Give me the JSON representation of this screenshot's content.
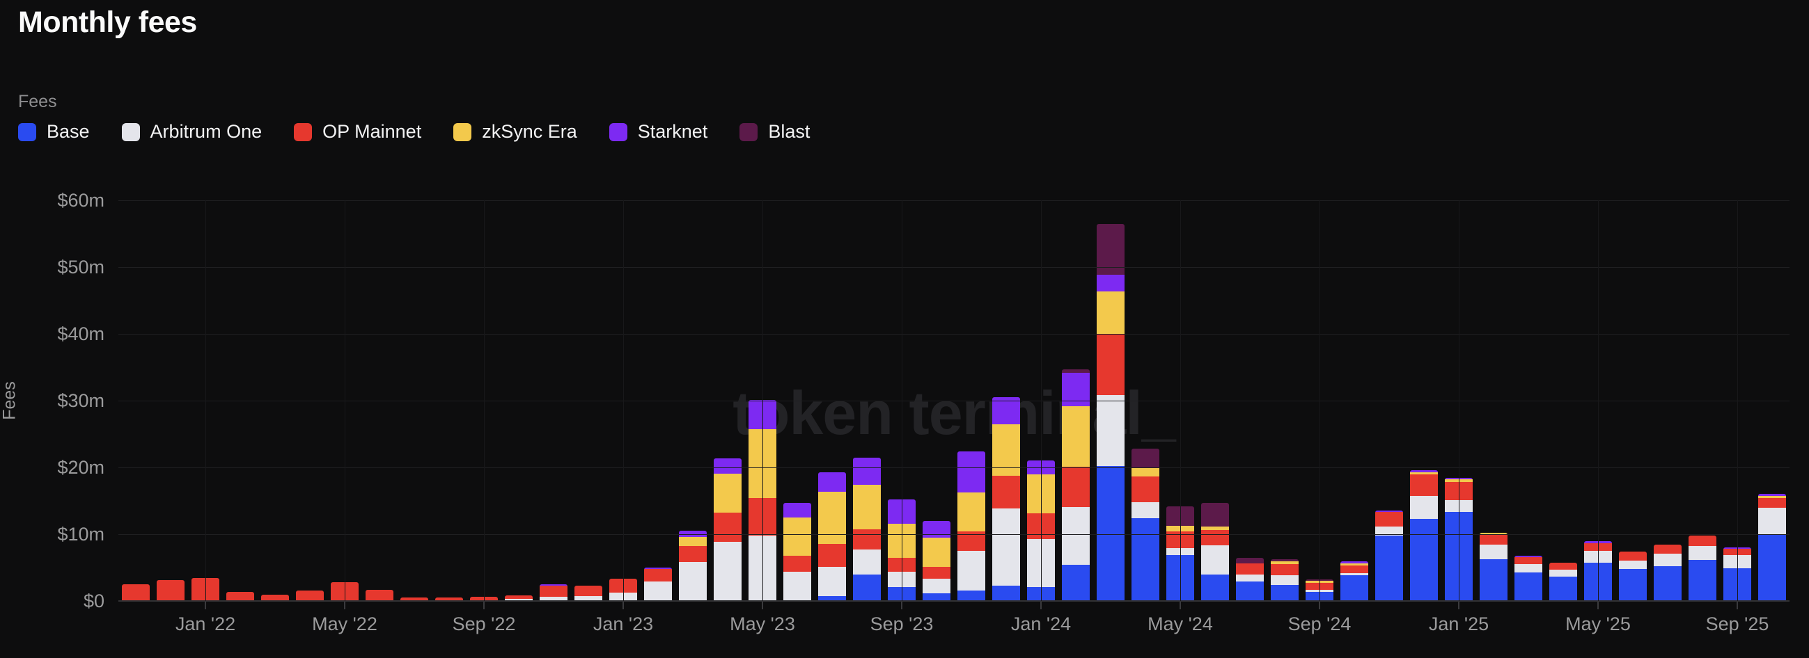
{
  "page": {
    "title": "Monthly fees"
  },
  "watermark": "token terminal_",
  "legend": {
    "group_label": "Fees",
    "items": [
      {
        "label": "Base",
        "color": "#2a4bf0"
      },
      {
        "label": "Arbitrum One",
        "color": "#e4e5eb"
      },
      {
        "label": "OP Mainnet",
        "color": "#e6382e"
      },
      {
        "label": "zkSync Era",
        "color": "#f3c94c"
      },
      {
        "label": "Starknet",
        "color": "#7d2af2"
      },
      {
        "label": "Blast",
        "color": "#5c1a4a"
      }
    ]
  },
  "y_axis": {
    "title": "Fees",
    "ticks": [
      {
        "label": "$60m",
        "value": 60
      },
      {
        "label": "$50m",
        "value": 50
      },
      {
        "label": "$40m",
        "value": 40
      },
      {
        "label": "$30m",
        "value": 30
      },
      {
        "label": "$20m",
        "value": 20
      },
      {
        "label": "$10m",
        "value": 10
      },
      {
        "label": "$0",
        "value": 0
      }
    ]
  },
  "chart_data": {
    "type": "bar",
    "stacked": true,
    "title": "Monthly fees",
    "ylabel": "Fees",
    "unit": "USD millions",
    "ylim": [
      0,
      60
    ],
    "grid": true,
    "legend_position": "top-left",
    "categories": [
      "Nov '21",
      "Dec '21",
      "Jan '22",
      "Feb '22",
      "Mar '22",
      "Apr '22",
      "May '22",
      "Jun '22",
      "Jul '22",
      "Aug '22",
      "Sep '22",
      "Oct '22",
      "Nov '22",
      "Dec '22",
      "Jan '23",
      "Feb '23",
      "Mar '23",
      "Apr '23",
      "May '23",
      "Jun '23",
      "Jul '23",
      "Aug '23",
      "Sep '23",
      "Oct '23",
      "Nov '23",
      "Dec '23",
      "Jan '24",
      "Feb '24",
      "Mar '24",
      "Apr '24",
      "May '24",
      "Jun '24",
      "Jul '24",
      "Aug '24",
      "Sep '24",
      "Oct '24",
      "Nov '24",
      "Dec '24",
      "Jan '25",
      "Feb '25",
      "Mar '25",
      "Apr '25",
      "May '25",
      "Jun '25",
      "Jul '25",
      "Aug '25",
      "Sep '25",
      "Oct '25"
    ],
    "x_ticks": [
      {
        "index": 2,
        "label": "Jan '22"
      },
      {
        "index": 6,
        "label": "May '22"
      },
      {
        "index": 10,
        "label": "Sep '22"
      },
      {
        "index": 14,
        "label": "Jan '23"
      },
      {
        "index": 18,
        "label": "May '23"
      },
      {
        "index": 22,
        "label": "Sep '23"
      },
      {
        "index": 26,
        "label": "Jan '24"
      },
      {
        "index": 30,
        "label": "May '24"
      },
      {
        "index": 34,
        "label": "Sep '24"
      },
      {
        "index": 38,
        "label": "Jan '25"
      },
      {
        "index": 42,
        "label": "May '25"
      },
      {
        "index": 46,
        "label": "Sep '25"
      }
    ],
    "series": [
      {
        "name": "Base",
        "color": "#2a4bf0",
        "values": [
          0,
          0,
          0,
          0,
          0,
          0,
          0,
          0,
          0,
          0,
          0,
          0,
          0,
          0,
          0,
          0,
          0,
          0,
          0,
          0,
          0.65,
          3.9,
          2.0,
          1.05,
          1.45,
          2.2,
          1.95,
          5.3,
          20.1,
          12.3,
          6.8,
          3.9,
          2.85,
          2.25,
          1.3,
          3.75,
          9.65,
          12.2,
          13.25,
          6.15,
          4.2,
          3.5,
          5.6,
          4.65,
          5.1,
          6.0,
          4.75,
          9.8
        ]
      },
      {
        "name": "Arbitrum One",
        "color": "#e4e5eb",
        "values": [
          0,
          0,
          0,
          0,
          0,
          0,
          0,
          0,
          0,
          0,
          0,
          0.2,
          0.5,
          0.6,
          1.1,
          2.8,
          5.75,
          8.75,
          9.7,
          4.3,
          4.4,
          3.7,
          2.3,
          2.2,
          5.95,
          11.6,
          7.2,
          8.7,
          10.6,
          2.4,
          1.05,
          4.3,
          1.0,
          1.55,
          0.3,
          0.3,
          1.4,
          3.4,
          1.8,
          2.2,
          1.2,
          1.1,
          1.75,
          1.3,
          1.85,
          2.15,
          2.0,
          4.05
        ]
      },
      {
        "name": "OP Mainnet",
        "color": "#e6382e",
        "values": [
          2.4,
          3.0,
          3.35,
          1.25,
          0.85,
          1.5,
          2.7,
          1.6,
          0.45,
          0.4,
          0.55,
          0.55,
          1.7,
          1.6,
          2.1,
          1.9,
          2.4,
          4.4,
          5.6,
          2.35,
          3.4,
          3.0,
          2.1,
          1.75,
          2.9,
          4.8,
          3.9,
          6.0,
          9.2,
          3.85,
          2.5,
          2.3,
          1.7,
          1.65,
          1.0,
          1.2,
          2.15,
          3.3,
          2.7,
          1.4,
          1.1,
          1.0,
          1.2,
          1.3,
          1.4,
          1.5,
          0.95,
          1.5
        ]
      },
      {
        "name": "zkSync Era",
        "color": "#f3c94c",
        "values": [
          0,
          0,
          0,
          0,
          0,
          0,
          0,
          0,
          0,
          0,
          0,
          0,
          0,
          0,
          0,
          0,
          1.3,
          5.85,
          10.35,
          5.7,
          7.8,
          6.65,
          5.1,
          4.35,
          5.85,
          7.8,
          5.85,
          9.1,
          6.4,
          1.25,
          0.75,
          0.5,
          0,
          0.4,
          0.3,
          0.3,
          0,
          0.3,
          0.35,
          0.4,
          0,
          0,
          0,
          0,
          0,
          0,
          0,
          0.3
        ]
      },
      {
        "name": "Starknet",
        "color": "#7d2af2",
        "values": [
          0,
          0,
          0,
          0,
          0,
          0,
          0,
          0,
          0,
          0,
          0,
          0,
          0.2,
          0,
          0,
          0.25,
          0.95,
          2.25,
          4.4,
          2.25,
          2.9,
          4.1,
          3.65,
          2.5,
          6.15,
          4.0,
          2.0,
          5.0,
          2.5,
          0,
          0,
          0,
          0,
          0,
          0,
          0.25,
          0.25,
          0.3,
          0.2,
          0,
          0.2,
          0,
          0.3,
          0,
          0,
          0,
          0.25,
          0.25
        ]
      },
      {
        "name": "Blast",
        "color": "#5c1a4a",
        "values": [
          0,
          0,
          0,
          0,
          0,
          0,
          0,
          0,
          0,
          0,
          0,
          0,
          0,
          0,
          0,
          0,
          0,
          0,
          0,
          0,
          0,
          0,
          0,
          0,
          0,
          0,
          0,
          0.45,
          7.6,
          2.9,
          3.0,
          3.6,
          0.85,
          0.3,
          0.2,
          0,
          0,
          0,
          0,
          0,
          0,
          0,
          0,
          0,
          0,
          0,
          0,
          0
        ]
      }
    ]
  }
}
